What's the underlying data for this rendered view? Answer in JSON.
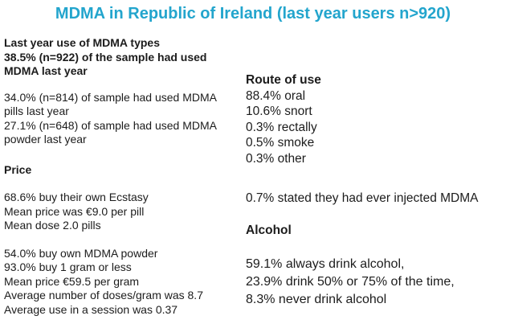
{
  "slide": {
    "title": "MDMA in Republic of Ireland (last year users n>920)"
  },
  "colors": {
    "title_accent": "#23a5cd",
    "body_text": "#1c1c1c",
    "background": "#ffffff"
  },
  "left": {
    "usage_heading": {
      "lines": [
        "Last year use of MDMA types",
        "38.5% (n=922) of the sample had used",
        "MDMA last year"
      ]
    },
    "usage_stats": {
      "lines": [
        "34.0% (n=814) of sample had used MDMA",
        "pills last year",
        "27.1% (n=648) of sample had used MDMA",
        "powder last year"
      ]
    },
    "price_heading": "Price",
    "pill_price": {
      "lines": [
        "68.6% buy their own Ecstasy",
        "Mean price was €9.0 per pill",
        "Mean dose 2.0 pills"
      ]
    },
    "powder_price": {
      "lines": [
        "54.0% buy own MDMA powder",
        "93.0% buy 1 gram or less",
        "Mean price €59.5 per gram",
        "Average number of doses/gram was 8.7",
        "Average use in a session was 0.37"
      ]
    }
  },
  "right": {
    "route_heading": "Route of use",
    "route_lines": [
      "88.4% oral",
      "10.6% snort",
      "0.3% rectally",
      "0.5% smoke",
      "0.3% other"
    ],
    "injected_line": "0.7% stated they had ever injected MDMA",
    "alcohol_heading": "Alcohol",
    "alcohol_lines": [
      "59.1% always drink alcohol,",
      "23.9% drink 50% or 75% of the time,",
      "8.3% never drink alcohol"
    ]
  }
}
